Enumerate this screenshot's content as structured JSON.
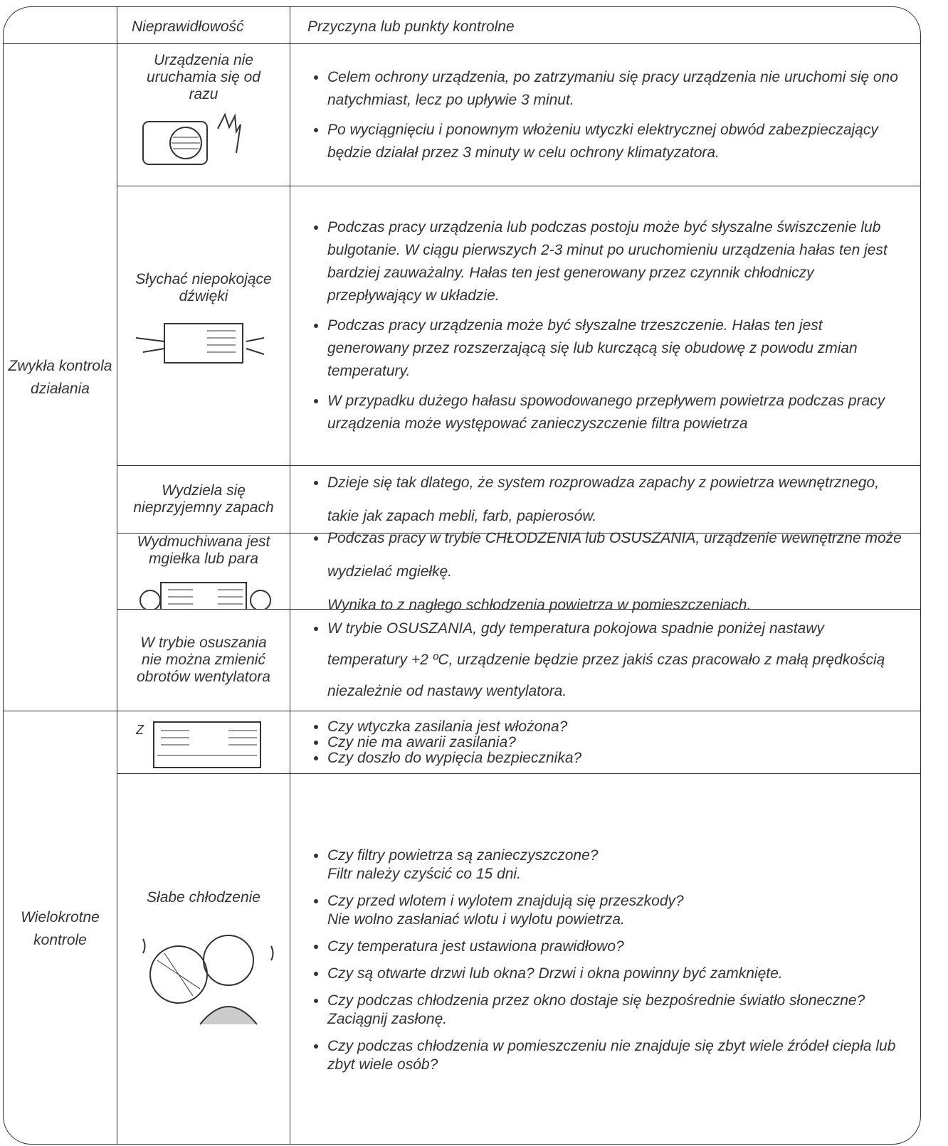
{
  "header": {
    "problem": "Nieprawidłowość",
    "cause": "Przyczyna lub punkty kontrolne"
  },
  "groups": [
    {
      "label": "Zwykła kontrola działania",
      "rows": [
        {
          "problem": "Urządzenia nie uruchamia się od razu",
          "causes": [
            [
              "Celem ochrony urządzenia, po zatrzymaniu się pracy urządzenia nie uruchomi się ono natychmiast, lecz po upływie 3 minut."
            ],
            [
              "Po wyciągnięciu i ponownym włożeniu wtyczki elektrycznej obwód zabezpieczający będzie działał przez 3 minuty w celu ochrony klimatyzatora."
            ]
          ]
        },
        {
          "problem": "Słychać niepokojące dźwięki",
          "causes": [
            [
              "Podczas pracy urządzenia lub podczas postoju może być słyszalne świszczenie lub bulgotanie. W ciągu pierwszych 2-3 minut po uruchomieniu urządzenia hałas ten jest bardziej zauważalny. Hałas ten jest generowany przez czynnik chłodniczy przepływający w układzie."
            ],
            [
              "Podczas pracy urządzenia może być słyszalne trzeszczenie. Hałas ten jest generowany przez rozszerzającą się lub kurczącą się obudowę z powodu zmian temperatury."
            ],
            [
              "W przypadku dużego hałasu spowodowanego przepływem powietrza podczas pracy urządzenia może występować zanieczyszczenie filtra powietrza"
            ]
          ]
        },
        {
          "problem": "Wydziela się nieprzyjemny zapach",
          "causes": [
            [
              "Dzieje się tak dlatego, że system rozprowadza zapachy z powietrza wewnętrznego, takie jak zapach mebli, farb, papierosów."
            ]
          ]
        },
        {
          "problem": "Wydmuchiwana jest mgiełka lub para",
          "causes": [
            [
              "Podczas pracy w trybie CHŁODZENIA lub OSUSZANIA, urządzenie wewnętrzne może wydzielać mgiełkę.",
              "Wynika to z nagłego schłodzenia powietrza w pomieszczeniach."
            ]
          ]
        },
        {
          "problem": "W trybie osuszania nie można zmienić obrotów wentylatora",
          "causes": [
            [
              "W trybie OSUSZANIA, gdy temperatura pokojowa spadnie poniżej nastawy temperatury +2 ºC, urządzenie będzie przez jakiś czas pracowało z małą prędkością niezależnie od nastawy wentylatora."
            ]
          ]
        }
      ]
    },
    {
      "label": "Wielokrotne kontrole",
      "rows": [
        {
          "causes": [
            [
              "Czy wtyczka zasilania jest włożona?"
            ],
            [
              "Czy nie ma awarii zasilania?"
            ],
            [
              "Czy doszło do wypięcia bezpiecznika?"
            ]
          ]
        },
        {
          "problem": "Słabe chłodzenie",
          "causes": [
            [
              "Czy filtry powietrza są zanieczyszczone?",
              "Filtr należy czyścić co 15 dni."
            ],
            [
              "Czy przed wlotem i wylotem znajdują się przeszkody?",
              "Nie wolno zasłaniać wlotu i wylotu powietrza."
            ],
            [
              "Czy temperatura jest ustawiona prawidłowo?"
            ],
            [
              "Czy są otwarte drzwi lub okna? Drzwi i okna powinny być zamknięte."
            ],
            [
              "Czy podczas chłodzenia przez okno dostaje się bezpośrednie światło słoneczne? Zaciągnij zasłonę."
            ],
            [
              "Czy podczas chłodzenia w pomieszczeniu nie znajduje się zbyt wiele źródeł ciepła lub zbyt wiele osób?"
            ]
          ]
        }
      ]
    }
  ]
}
